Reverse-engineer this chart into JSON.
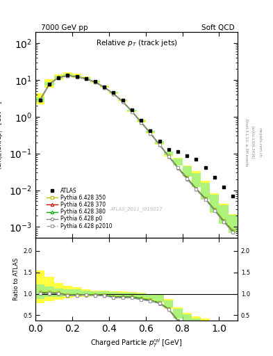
{
  "title_top": "7000 GeV pp",
  "title_right": "Soft QCD",
  "plot_title": "Relative p_{T} (track jets)",
  "xlabel": "Charged Particle p_{T}^{rel} [GeV]",
  "ylabel": "(1/N_{jet})dN/dp_{T}^{rel} [GeV^{-1}]",
  "ylabel_ratio": "Ratio to ATLAS",
  "rivet_label": "Rivet 3.1.10, ≥ 3M events",
  "arxiv_label": "[arXiv:1306.3436]",
  "mcplots_label": "mcplots.cern.ch",
  "atlas_ref": "ATLAS_2011_I919017",
  "x_data": [
    0.025,
    0.075,
    0.125,
    0.175,
    0.225,
    0.275,
    0.325,
    0.375,
    0.425,
    0.475,
    0.525,
    0.575,
    0.625,
    0.675,
    0.725,
    0.775,
    0.825,
    0.875,
    0.925,
    0.975,
    1.025,
    1.075
  ],
  "x_edges": [
    0.0,
    0.05,
    0.1,
    0.15,
    0.2,
    0.25,
    0.3,
    0.35,
    0.4,
    0.45,
    0.5,
    0.55,
    0.6,
    0.65,
    0.7,
    0.75,
    0.8,
    0.85,
    0.9,
    0.95,
    1.0,
    1.05,
    1.1
  ],
  "atlas_y": [
    2.8,
    7.5,
    11.5,
    13.5,
    12.5,
    11.0,
    9.0,
    6.5,
    4.5,
    2.8,
    1.5,
    0.8,
    0.42,
    0.22,
    0.13,
    0.11,
    0.085,
    0.068,
    0.042,
    0.022,
    0.012,
    0.007
  ],
  "p350_y": [
    2.9,
    7.8,
    11.8,
    13.2,
    12.2,
    10.8,
    8.8,
    6.3,
    4.2,
    2.6,
    1.4,
    0.72,
    0.36,
    0.175,
    0.085,
    0.042,
    0.022,
    0.011,
    0.006,
    0.003,
    0.0015,
    0.0008
  ],
  "p370_y": [
    2.85,
    7.6,
    11.6,
    13.0,
    12.1,
    10.7,
    8.7,
    6.25,
    4.15,
    2.58,
    1.38,
    0.7,
    0.355,
    0.172,
    0.083,
    0.041,
    0.021,
    0.0108,
    0.0058,
    0.0029,
    0.0014,
    0.00075
  ],
  "p380_y": [
    2.88,
    7.65,
    11.65,
    13.05,
    12.15,
    10.75,
    8.75,
    6.28,
    4.18,
    2.6,
    1.39,
    0.71,
    0.357,
    0.173,
    0.084,
    0.0415,
    0.0212,
    0.0109,
    0.00585,
    0.00292,
    0.00142,
    0.00076
  ],
  "pp0_y": [
    2.82,
    7.55,
    11.55,
    12.9,
    12.05,
    10.65,
    8.65,
    6.2,
    4.1,
    2.55,
    1.36,
    0.69,
    0.35,
    0.17,
    0.082,
    0.04,
    0.02,
    0.0105,
    0.0056,
    0.0028,
    0.00136,
    0.00072
  ],
  "pp2010_y": [
    2.83,
    7.57,
    11.57,
    12.92,
    12.07,
    10.67,
    8.67,
    6.22,
    4.12,
    2.56,
    1.37,
    0.695,
    0.352,
    0.171,
    0.0825,
    0.0405,
    0.0205,
    0.01055,
    0.00565,
    0.00282,
    0.00138,
    0.00073
  ],
  "color_350": "#b8b800",
  "color_370": "#cc0000",
  "color_380": "#00aa00",
  "color_p0": "#888888",
  "color_p2010": "#999999",
  "color_atlas": "#000000",
  "band_350_lo": [
    0.78,
    0.83,
    0.87,
    0.9,
    0.92,
    0.93,
    0.94,
    0.94,
    0.93,
    0.91,
    0.9,
    0.88,
    0.84,
    0.79,
    0.65,
    0.42,
    0.28,
    0.18,
    0.13,
    0.11,
    0.1,
    0.1
  ],
  "band_350_hi": [
    1.55,
    1.4,
    1.25,
    1.18,
    1.16,
    1.1,
    1.08,
    1.07,
    1.06,
    1.05,
    1.04,
    1.02,
    1.0,
    0.98,
    0.88,
    0.68,
    0.56,
    0.48,
    0.42,
    0.38,
    0.35,
    0.32
  ],
  "band_380_lo": [
    0.88,
    0.92,
    0.93,
    0.94,
    0.95,
    0.96,
    0.97,
    0.97,
    0.96,
    0.95,
    0.93,
    0.91,
    0.87,
    0.82,
    0.68,
    0.42,
    0.28,
    0.18,
    0.13,
    0.11,
    0.1,
    0.1
  ],
  "band_380_hi": [
    1.22,
    1.17,
    1.13,
    1.1,
    1.1,
    1.08,
    1.06,
    1.05,
    1.04,
    1.03,
    1.02,
    1.01,
    0.99,
    0.97,
    0.85,
    0.65,
    0.52,
    0.42,
    0.38,
    0.35,
    0.32,
    0.3
  ],
  "xlim": [
    0.0,
    1.1
  ],
  "ylim_main": [
    0.0005,
    200
  ],
  "ylim_ratio": [
    0.38,
    2.3
  ],
  "yticks_ratio": [
    0.5,
    1.0,
    1.5,
    2.0
  ]
}
